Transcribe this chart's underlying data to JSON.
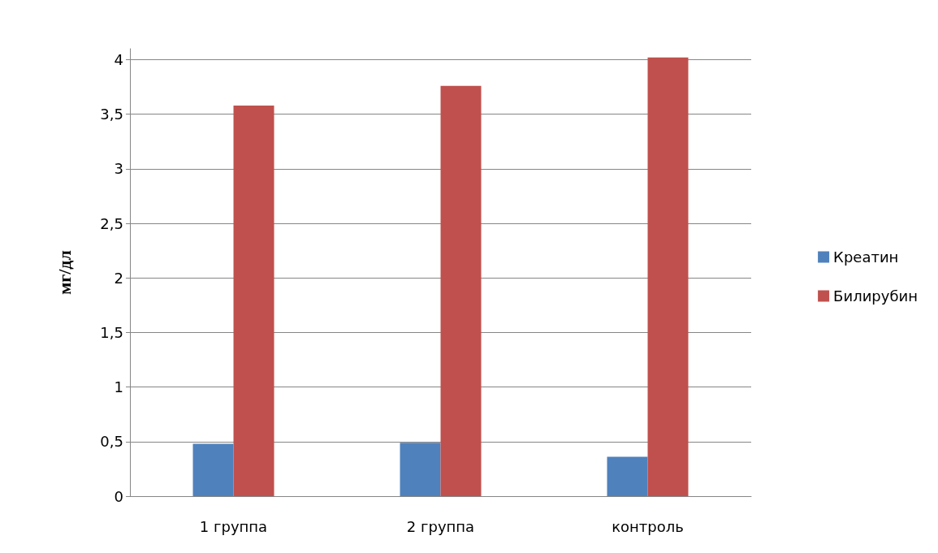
{
  "chart_data": {
    "type": "bar",
    "ylabel": "мг/дл",
    "categories": [
      "1 группа",
      "2 группа",
      "контроль"
    ],
    "series": [
      {
        "name": "Креатин",
        "color": "#4f81bd",
        "values": [
          0.48,
          0.49,
          0.36
        ]
      },
      {
        "name": "Билирубин",
        "color": "#c0504d",
        "values": [
          3.58,
          3.76,
          4.02
        ]
      }
    ],
    "ylim": [
      0,
      4.1
    ],
    "yticks": [
      0,
      {
        "value": 0.5,
        "label": "0,5"
      },
      1,
      {
        "value": 1.5,
        "label": "1,5"
      },
      2,
      {
        "value": 2.5,
        "label": "2,5"
      },
      3,
      {
        "value": 3.5,
        "label": "3,5"
      },
      4
    ],
    "grid": true,
    "legend": "right"
  }
}
